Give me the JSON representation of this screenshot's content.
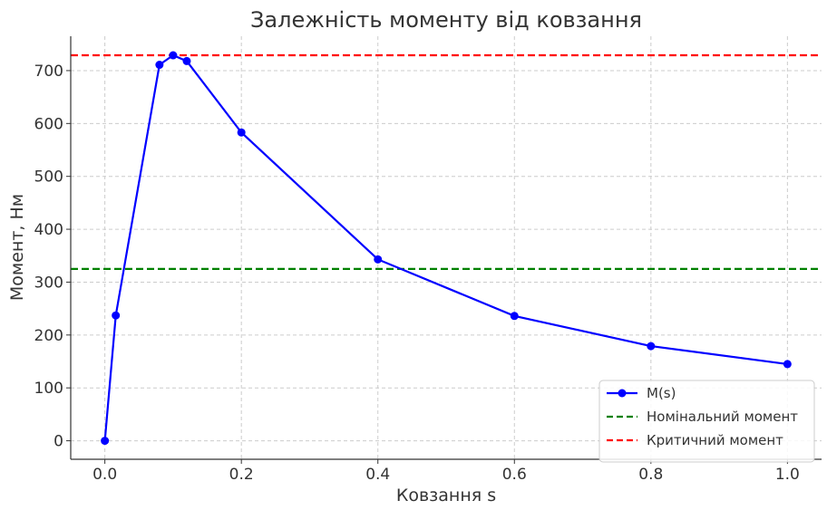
{
  "chart_data": {
    "type": "line",
    "title": "Залежність моменту від ковзання",
    "xlabel": "Ковзання s",
    "ylabel": "Момент, Нм",
    "xlim": [
      -0.05,
      1.05
    ],
    "ylim": [
      -35,
      765
    ],
    "xticks": [
      0.0,
      0.2,
      0.4,
      0.6,
      0.8,
      1.0
    ],
    "xtick_labels": [
      "0.0",
      "0.2",
      "0.4",
      "0.6",
      "0.8",
      "1.0"
    ],
    "yticks": [
      0,
      100,
      200,
      300,
      400,
      500,
      600,
      700
    ],
    "ytick_labels": [
      "0",
      "100",
      "200",
      "300",
      "400",
      "500",
      "600",
      "700"
    ],
    "grid": true,
    "legend_position": "bottom-right",
    "series": [
      {
        "name": "M(s)",
        "color": "#0000ff",
        "marker": "circle",
        "x": [
          0.0,
          0.016,
          0.08,
          0.1,
          0.12,
          0.2,
          0.4,
          0.6,
          0.8,
          1.0
        ],
        "y": [
          0,
          237,
          711,
          729,
          718,
          583,
          343,
          236,
          179,
          145
        ]
      }
    ],
    "hlines": [
      {
        "name": "Номінальний момент",
        "y": 325,
        "color": "#008000",
        "style": "dashed"
      },
      {
        "name": "Критичний момент",
        "y": 729,
        "color": "#ff0000",
        "style": "dashed"
      }
    ]
  }
}
